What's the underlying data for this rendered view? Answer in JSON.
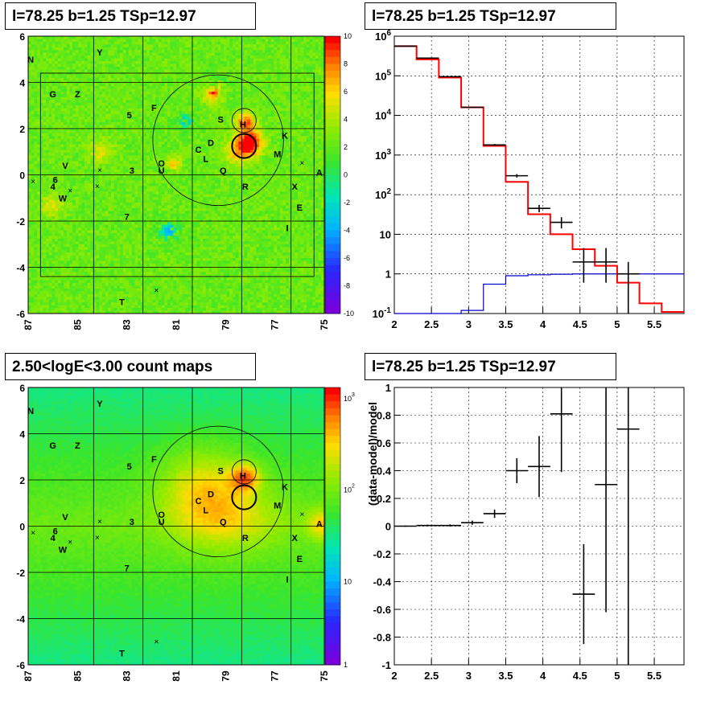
{
  "panels": {
    "top_left_title": "l=78.25 b=1.25 TSp=12.97",
    "top_right_title": "l=78.25 b=1.25 TSp=12.97",
    "bottom_left_title": "2.50<logE<3.00 count maps",
    "bottom_right_title": "l=78.25 b=1.25 TSp=12.97"
  },
  "colors": {
    "data": "#000000",
    "model": "#ff0000",
    "background_model": "#0000cc"
  },
  "chart_data": [
    {
      "type": "heatmap",
      "title": "l=78.25 b=1.25 TSp=12.97",
      "xlim": [
        87,
        75
      ],
      "ylim": [
        -6,
        6
      ],
      "x_ticks": [
        "87",
        "85",
        "83",
        "81",
        "79",
        "77",
        "75"
      ],
      "y_ticks": [
        "6",
        "4",
        "2",
        "0",
        "-2",
        "-4",
        "-6"
      ],
      "colorbar_ticks": [
        "10",
        "8",
        "6",
        "4",
        "2",
        "0",
        "-2",
        "-4",
        "-6",
        "-8",
        "-10"
      ],
      "source_labels": [
        {
          "label": "N",
          "l": 86.9,
          "b": 5.0
        },
        {
          "label": "Y",
          "l": 84.1,
          "b": 5.3
        },
        {
          "label": "G",
          "l": 86.0,
          "b": 3.5
        },
        {
          "label": "Z",
          "l": 85.0,
          "b": 3.5
        },
        {
          "label": "5",
          "l": 82.9,
          "b": 2.6
        },
        {
          "label": "F",
          "l": 81.9,
          "b": 2.9
        },
        {
          "label": "S",
          "l": 79.2,
          "b": 2.4
        },
        {
          "label": "H",
          "l": 78.3,
          "b": 2.2
        },
        {
          "label": "D",
          "l": 79.6,
          "b": 1.4
        },
        {
          "label": "K",
          "l": 76.6,
          "b": 1.7
        },
        {
          "label": "C",
          "l": 80.1,
          "b": 1.1
        },
        {
          "label": "M",
          "l": 76.9,
          "b": 0.9
        },
        {
          "label": "L",
          "l": 79.8,
          "b": 0.7
        },
        {
          "label": "O",
          "l": 81.6,
          "b": 0.5
        },
        {
          "label": "V",
          "l": 85.5,
          "b": 0.4
        },
        {
          "label": "3",
          "l": 82.8,
          "b": 0.2
        },
        {
          "label": "U",
          "l": 81.6,
          "b": 0.2
        },
        {
          "label": "Q",
          "l": 79.1,
          "b": 0.2
        },
        {
          "label": "A",
          "l": 75.2,
          "b": 0.1
        },
        {
          "label": "6",
          "l": 85.9,
          "b": -0.2
        },
        {
          "label": "4",
          "l": 86.0,
          "b": -0.5
        },
        {
          "label": "R",
          "l": 78.2,
          "b": -0.5
        },
        {
          "label": "X",
          "l": 76.2,
          "b": -0.5
        },
        {
          "label": "W",
          "l": 85.6,
          "b": -1.0
        },
        {
          "label": "E",
          "l": 76.0,
          "b": -1.4
        },
        {
          "label": "7",
          "l": 83.0,
          "b": -1.8
        },
        {
          "label": "I",
          "l": 76.5,
          "b": -2.3
        },
        {
          "label": "T",
          "l": 83.2,
          "b": -5.5
        }
      ]
    },
    {
      "type": "line",
      "title": "l=78.25 b=1.25 TSp=12.97",
      "x_ticks": [
        "2",
        "2.5",
        "3",
        "3.5",
        "4",
        "4.5",
        "5",
        "5.5"
      ],
      "y_ticks": [
        "10^-1",
        "1",
        "10",
        "10^2",
        "10^3",
        "10^4",
        "10^5",
        "10^6"
      ],
      "xlim": [
        2.0,
        5.9
      ],
      "ylim": [
        0.1,
        1000000
      ],
      "log_y": true,
      "grid": true,
      "bin_edges": [
        2.0,
        2.3,
        2.6,
        2.9,
        3.2,
        3.5,
        3.8,
        4.1,
        4.4,
        4.7,
        5.0,
        5.3,
        5.6,
        5.9
      ],
      "series": [
        {
          "role": "model",
          "values": [
            560000,
            260000,
            90000,
            16000,
            1700,
            210,
            32,
            10,
            4.2,
            1.6,
            0.6,
            0.18,
            0.11
          ]
        },
        {
          "role": "background_model",
          "values": [
            0.05,
            0.05,
            0.06,
            0.12,
            0.55,
            0.9,
            0.95,
            0.98,
            1.0,
            1.0,
            1.0,
            1.0,
            1.0
          ]
        },
        {
          "role": "data",
          "x": [
            2.15,
            2.45,
            2.75,
            3.05,
            3.35,
            3.65,
            3.95,
            4.25,
            4.55,
            4.85,
            5.15
          ],
          "y": [
            560000,
            280000,
            95000,
            16000,
            1800,
            300,
            45,
            20,
            2.0,
            2.0,
            1.0
          ],
          "y_low": [
            555000,
            275000,
            93000,
            15500,
            1700,
            270,
            36,
            14,
            0.6,
            0.6,
            0.08
          ],
          "y_high": [
            565000,
            285000,
            97000,
            16500,
            1900,
            330,
            55,
            27,
            4.5,
            4.5,
            2.0
          ]
        }
      ]
    },
    {
      "type": "heatmap",
      "title": "2.50<logE<3.00 count maps",
      "xlim": [
        87,
        75
      ],
      "ylim": [
        -6,
        6
      ],
      "x_ticks": [
        "87",
        "85",
        "83",
        "81",
        "79",
        "77",
        "75"
      ],
      "y_ticks": [
        "6",
        "4",
        "2",
        "0",
        "-2",
        "-4",
        "-6"
      ],
      "colorbar_ticks": [
        "10^3",
        "10^2",
        "10",
        "1"
      ],
      "log_scale": true
    },
    {
      "type": "scatter",
      "title": "l=78.25 b=1.25 TSp=12.97",
      "ylabel": "(data-model)/model",
      "x_ticks": [
        "2",
        "2.5",
        "3",
        "3.5",
        "4",
        "4.5",
        "5",
        "5.5"
      ],
      "y_ticks": [
        "1",
        "0.8",
        "0.6",
        "0.4",
        "0.2",
        "0",
        "-0.2",
        "-0.4",
        "-0.6",
        "-0.8",
        "-1"
      ],
      "xlim": [
        2.0,
        5.9
      ],
      "ylim": [
        -1,
        1
      ],
      "grid": true,
      "x": [
        2.15,
        2.45,
        2.75,
        3.05,
        3.35,
        3.65,
        3.95,
        4.25,
        4.55,
        4.85,
        5.15
      ],
      "y": [
        0.0,
        0.005,
        0.005,
        0.025,
        0.09,
        0.4,
        0.43,
        0.81,
        -0.49,
        0.3,
        0.7
      ],
      "y_err": [
        0.005,
        0.006,
        0.008,
        0.015,
        0.03,
        0.09,
        0.22,
        0.42,
        0.36,
        0.92,
        1.9
      ]
    }
  ]
}
